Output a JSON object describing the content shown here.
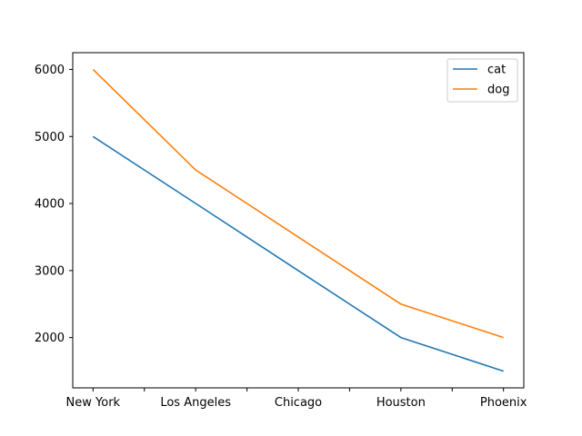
{
  "chart_data": {
    "type": "line",
    "categories": [
      "New York",
      "Los Angeles",
      "Chicago",
      "Houston",
      "Phoenix"
    ],
    "series": [
      {
        "name": "cat",
        "color": "#1f77b4",
        "values": [
          5000,
          4000,
          3000,
          2000,
          1500
        ]
      },
      {
        "name": "dog",
        "color": "#ff7f0e",
        "values": [
          6000,
          4500,
          3500,
          2500,
          2000
        ]
      }
    ],
    "title": "",
    "xlabel": "",
    "ylabel": "",
    "ylim": [
      1250,
      6250
    ],
    "yticks": [
      2000,
      3000,
      4000,
      5000,
      6000
    ],
    "ytick_labels": [
      "2000",
      "3000",
      "4000",
      "5000",
      "6000"
    ],
    "grid": false,
    "legend_position": "top-right"
  }
}
